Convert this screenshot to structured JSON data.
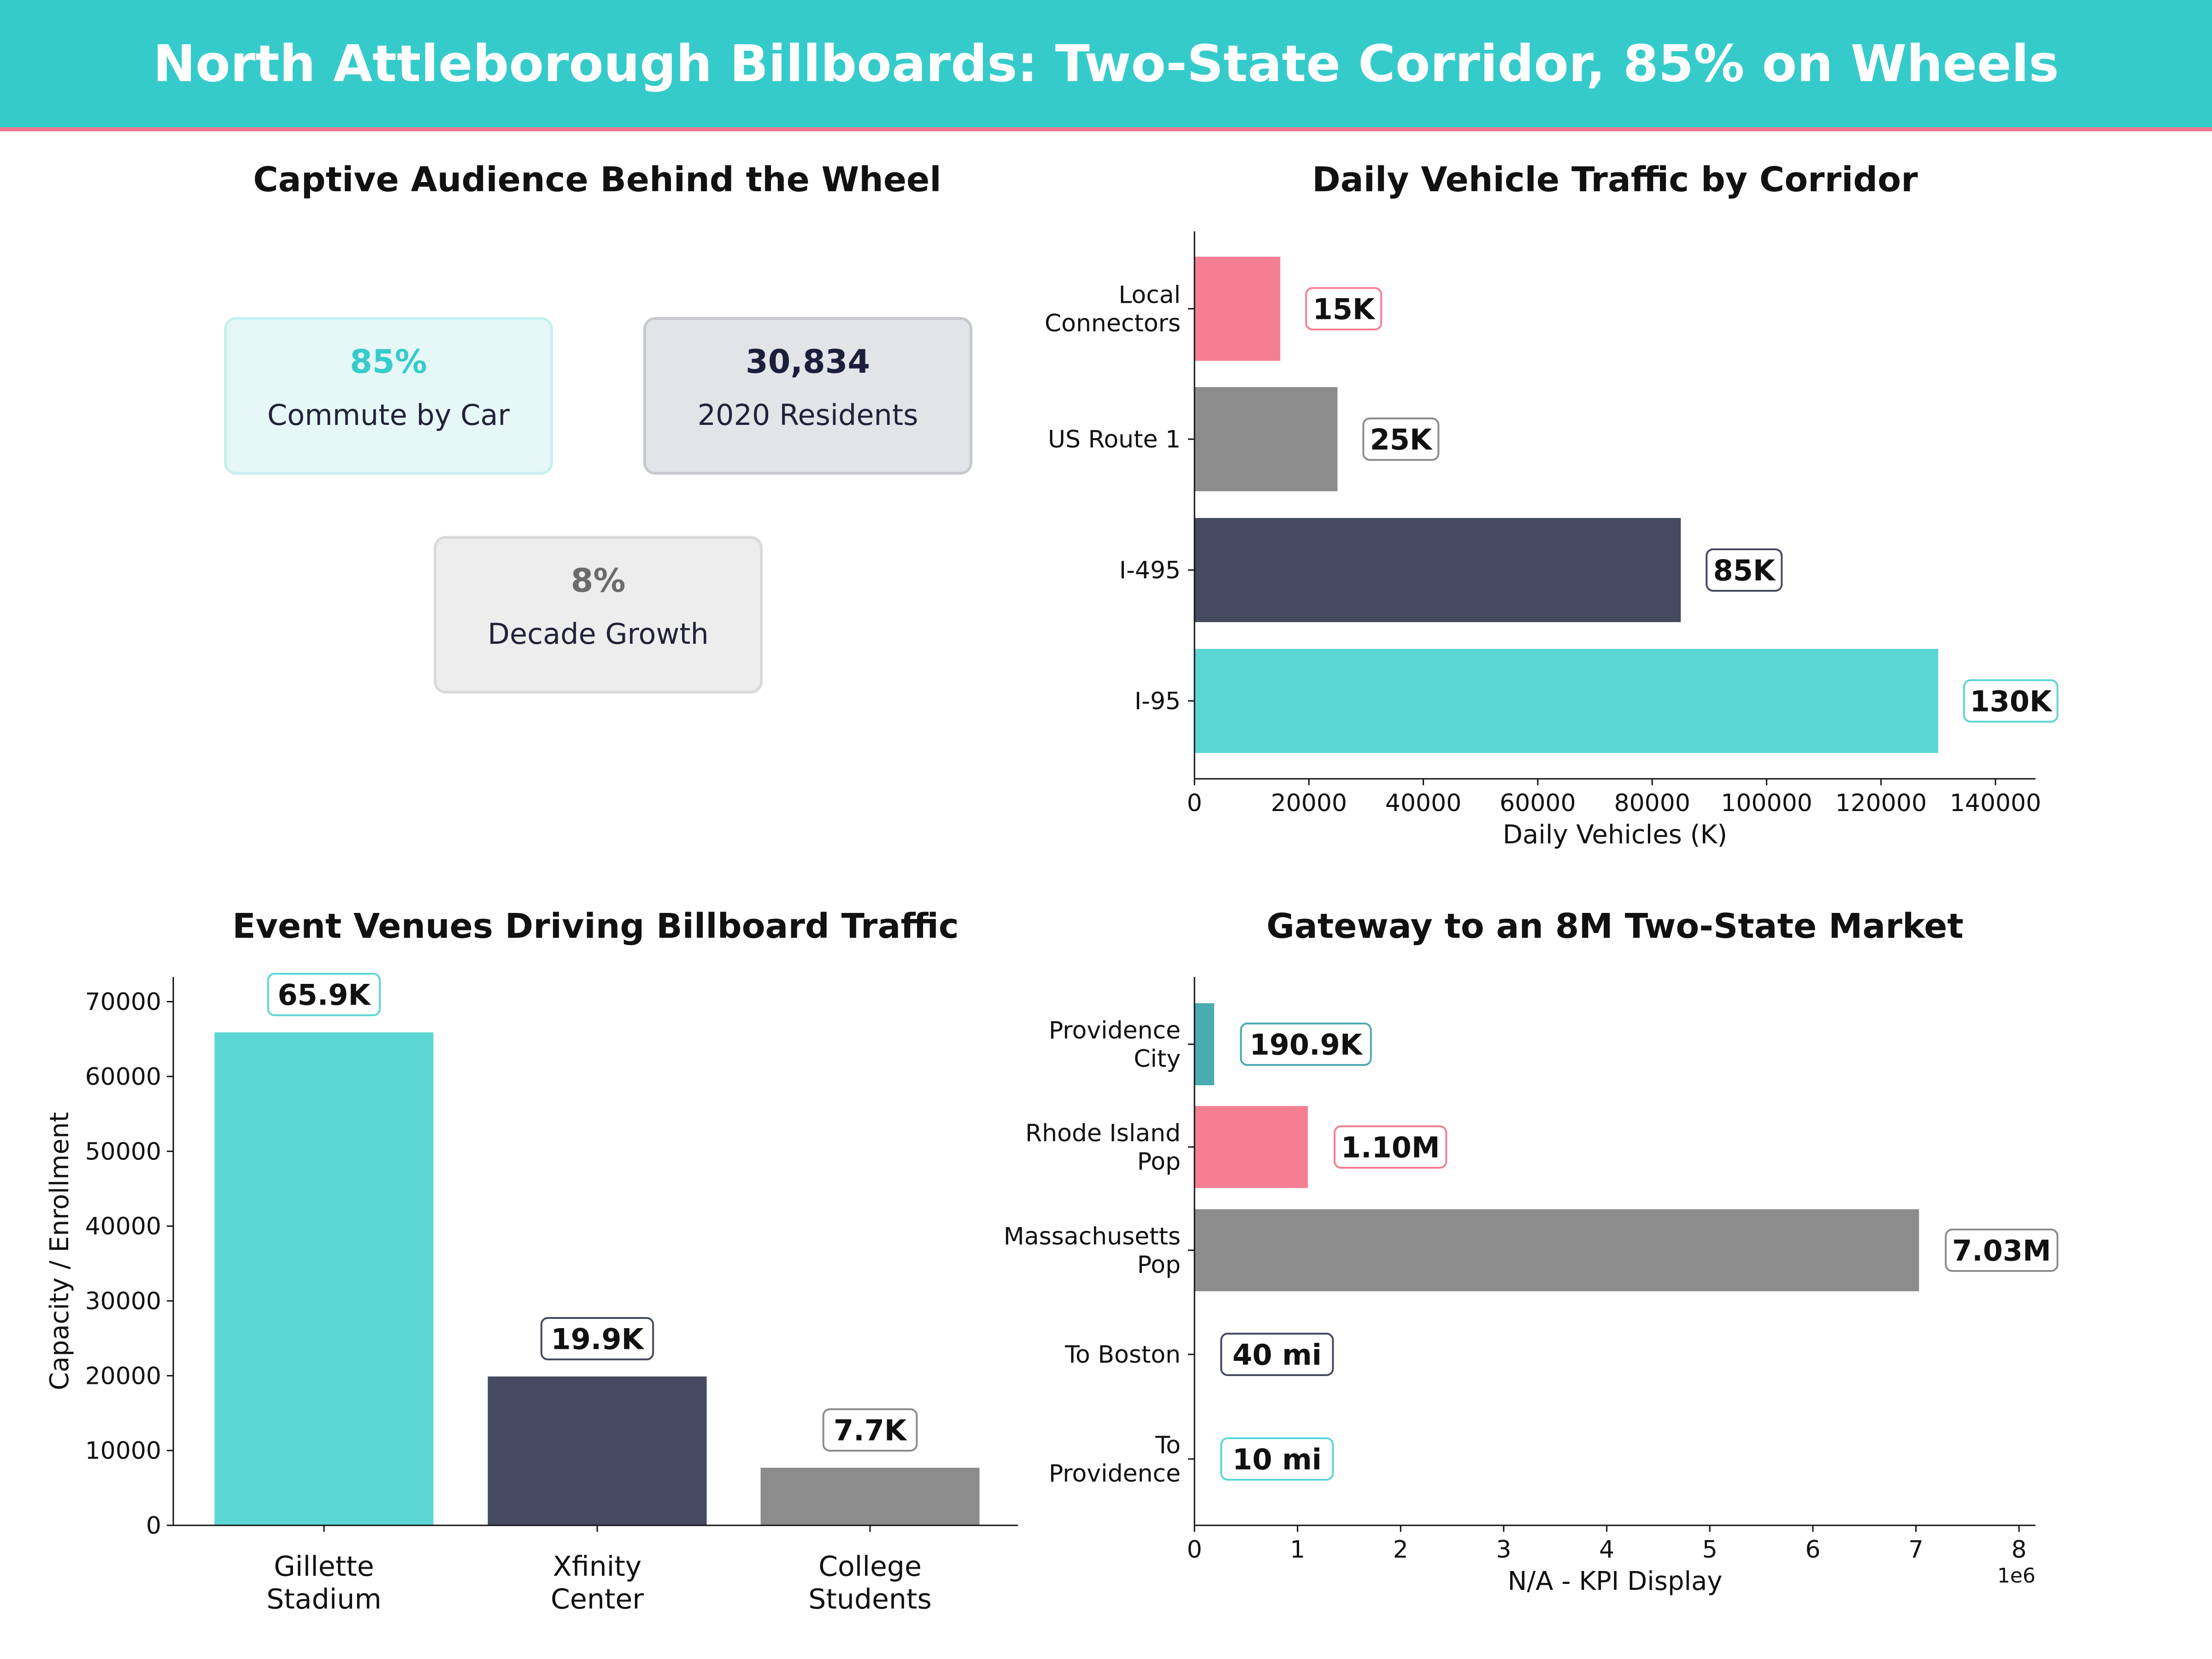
{
  "header": {
    "title": "North Attleborough Billboards: Two-State Corridor, 85% on Wheels"
  },
  "kpi_panel": {
    "title": "Captive Audience Behind the Wheel",
    "cards": [
      {
        "value": "85%",
        "label": "Commute by Car",
        "color": "#36CBCB",
        "fill": "#E6F7F7",
        "border": "#C9EFEF"
      },
      {
        "value": "30,834",
        "label": "2020 Residents",
        "color": "#1C1F3B",
        "fill": "#E3E4E8",
        "border": "#C8C9CE"
      },
      {
        "value": "8%",
        "label": "Decade Growth",
        "color": "#6B6B6B",
        "fill": "#EDEDED",
        "border": "#DADADA"
      }
    ]
  },
  "colors": {
    "teal": "#5CD6D4",
    "pink": "#F47F92",
    "gray": "#8C8C8C",
    "navy": "#464A60",
    "dark_teal": "#4AABB0"
  },
  "chart_data": [
    {
      "type": "bar",
      "orientation": "horizontal",
      "title": "Daily Vehicle Traffic by Corridor",
      "categories": [
        "Local\nConnectors",
        "US Route 1",
        "I-495",
        "I-95"
      ],
      "values": [
        15000,
        25000,
        85000,
        130000
      ],
      "value_labels": [
        "15K",
        "25K",
        "85K",
        "130K"
      ],
      "colors": [
        "#F47F92",
        "#8C8C8C",
        "#464A60",
        "#5CD6D4"
      ],
      "xlabel": "Daily Vehicles (K)",
      "xlim": [
        0,
        147000
      ],
      "xticks": [
        "0",
        "20000",
        "40000",
        "60000",
        "80000",
        "100000",
        "120000",
        "140000"
      ],
      "grid": false
    },
    {
      "type": "bar",
      "orientation": "vertical",
      "title": "Event Venues Driving Billboard Traffic",
      "categories": [
        "Gillette\nStadium",
        "Xfinity\nCenter",
        "College\nStudents"
      ],
      "values": [
        65900,
        19900,
        7700
      ],
      "value_labels": [
        "65.9K",
        "19.9K",
        "7.7K"
      ],
      "colors": [
        "#5CD6D4",
        "#464A60",
        "#8C8C8C"
      ],
      "ylabel": "Capacity / Enrollment",
      "ylim": [
        0,
        73300
      ],
      "yticks": [
        "0",
        "10000",
        "20000",
        "30000",
        "40000",
        "50000",
        "60000",
        "70000"
      ],
      "grid": false
    },
    {
      "type": "bar",
      "orientation": "horizontal",
      "title": "Gateway to an 8M Two-State Market",
      "categories": [
        "Providence\nCity",
        "Rhode Island\nPop",
        "Massachusetts\nPop",
        "To Boston",
        "To\nProvidence"
      ],
      "values": [
        190900,
        1100000,
        7030000,
        40,
        10
      ],
      "value_labels": [
        "190.9K",
        "1.10M",
        "7.03M",
        "40 mi",
        "10 mi"
      ],
      "colors": [
        "#4AABB0",
        "#F47F92",
        "#8C8C8C",
        "#464A60",
        "#5CD6D4"
      ],
      "xlabel": "N/A - KPI Display",
      "xlim": [
        0,
        8160000
      ],
      "xticks": [
        "0",
        "1",
        "2",
        "3",
        "4",
        "5",
        "6",
        "7",
        "8"
      ],
      "offset_label": "1e6",
      "grid": false
    }
  ]
}
